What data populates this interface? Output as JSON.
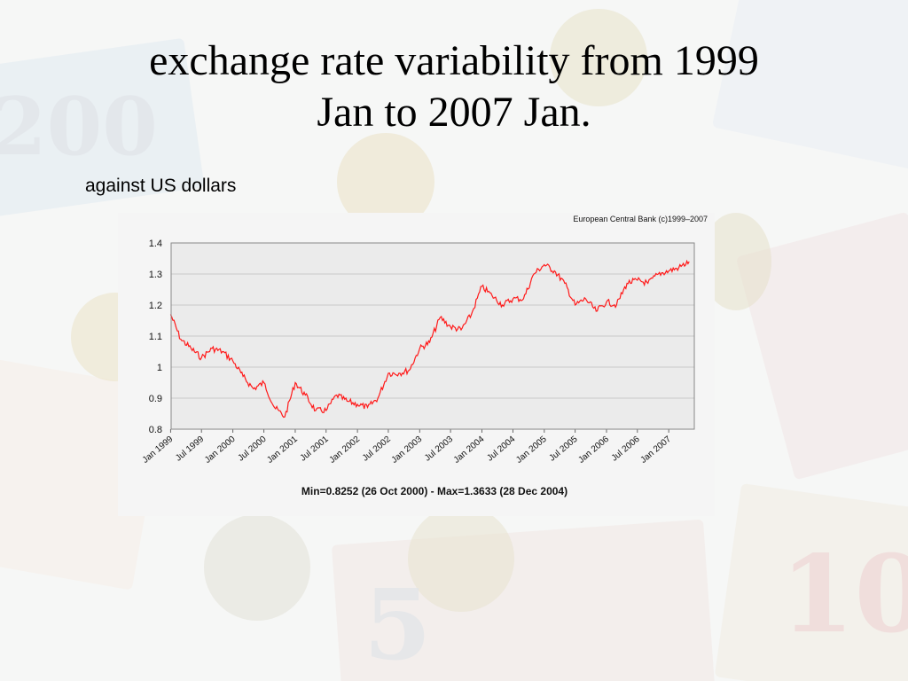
{
  "slide": {
    "title_line1": "exchange rate variability from 1999",
    "title_line2": "Jan to 2007 Jan.",
    "subtitle": "against US dollars"
  },
  "colors": {
    "line": "#ff1a1a",
    "plot_bg": "#ebebeb",
    "panel_bg": "#f5f5f5"
  },
  "chart_data": {
    "type": "line",
    "title": "",
    "source": "European Central Bank (c)1999–2007",
    "footer": "Min=0.8252 (26 Oct 2000) - Max=1.3633 (28 Dec 2004)",
    "xlabel": "",
    "ylabel": "",
    "x_range": [
      "1999-01-04",
      "2007-05-31"
    ],
    "ylim": [
      0.8,
      1.4
    ],
    "y_ticks": [
      "1.4",
      "1.3",
      "1.2",
      "1.1",
      "1",
      "0.9",
      "0.8"
    ],
    "x_ticks": [
      "Jan 1999",
      "Jul 1999",
      "Jan 2000",
      "Jul 2000",
      "Jan 2001",
      "Jul 2001",
      "Jan 2002",
      "Jul 2002",
      "Jan 2003",
      "Jul 2003",
      "Jan 2004",
      "Jul 2004",
      "Jan 2005",
      "Jul 2005",
      "Jan 2006",
      "Jul 2006",
      "Jan 2007"
    ],
    "grid": true,
    "series": [
      {
        "x": [
          "1999-01",
          "1999-03",
          "1999-05",
          "1999-07",
          "1999-09",
          "1999-11",
          "2000-01",
          "2000-03",
          "2000-05",
          "2000-07",
          "2000-09",
          "2000-11",
          "2001-01",
          "2001-03",
          "2001-05",
          "2001-07",
          "2001-09",
          "2001-11",
          "2002-01",
          "2002-03",
          "2002-05",
          "2002-07",
          "2002-09",
          "2002-11",
          "2003-01",
          "2003-03",
          "2003-05",
          "2003-07",
          "2003-09",
          "2003-11",
          "2004-01",
          "2004-03",
          "2004-05",
          "2004-07",
          "2004-09",
          "2004-11",
          "2005-01",
          "2005-03",
          "2005-05",
          "2005-07",
          "2005-09",
          "2005-11",
          "2006-01",
          "2006-03",
          "2006-05",
          "2006-07",
          "2006-09",
          "2006-11",
          "2007-01",
          "2007-03",
          "2007-05"
        ],
        "y": [
          1.17,
          1.09,
          1.06,
          1.03,
          1.06,
          1.05,
          1.02,
          0.97,
          0.93,
          0.95,
          0.87,
          0.84,
          0.95,
          0.91,
          0.86,
          0.86,
          0.91,
          0.89,
          0.88,
          0.87,
          0.9,
          0.98,
          0.98,
          0.99,
          1.06,
          1.08,
          1.16,
          1.13,
          1.12,
          1.17,
          1.26,
          1.23,
          1.2,
          1.22,
          1.22,
          1.3,
          1.33,
          1.31,
          1.27,
          1.2,
          1.22,
          1.18,
          1.21,
          1.2,
          1.27,
          1.28,
          1.27,
          1.3,
          1.31,
          1.32,
          1.34
        ]
      }
    ]
  }
}
